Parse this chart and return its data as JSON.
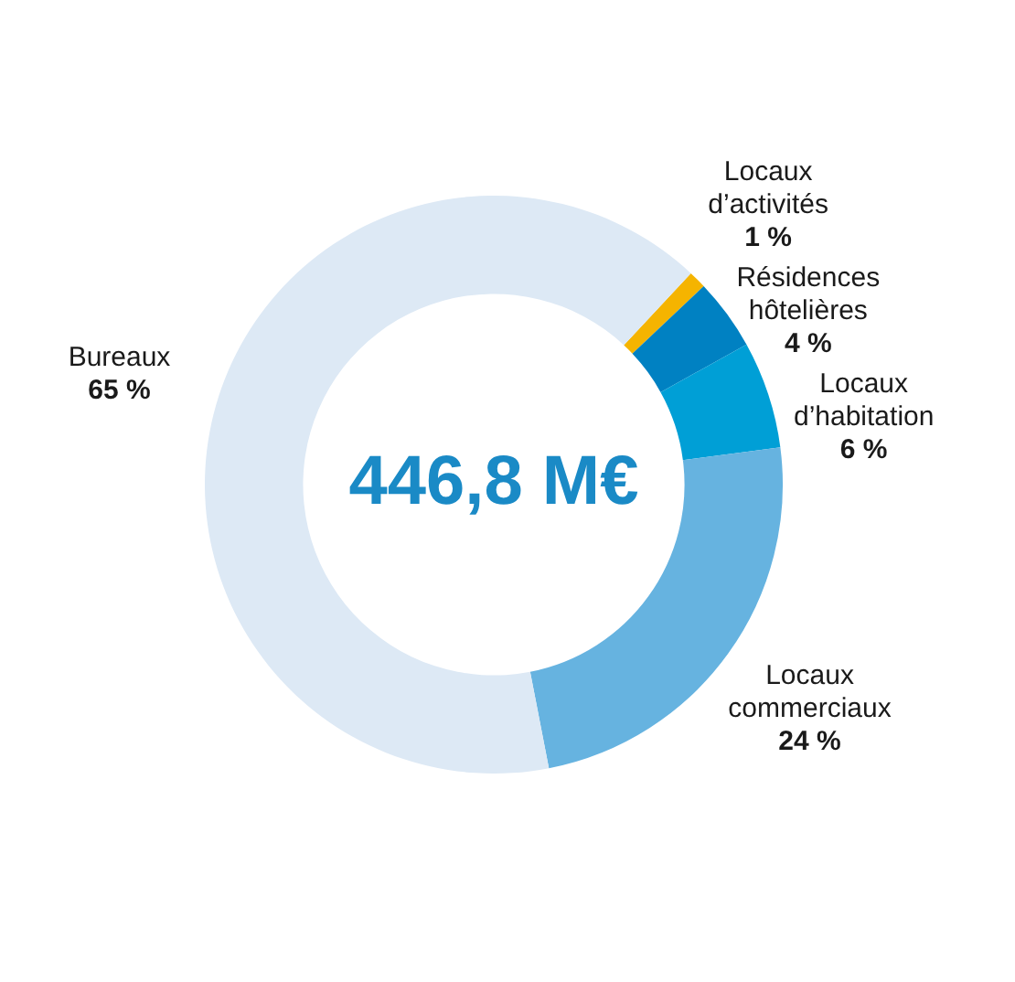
{
  "chart_data": {
    "type": "donut",
    "categories": [
      "Locaux d’activités",
      "Résidences hôtelières",
      "Locaux d’habitation",
      "Locaux commerciaux",
      "Bureaux"
    ],
    "values": [
      1,
      4,
      6,
      24,
      65
    ],
    "colors": [
      "#f5b400",
      "#0081c2",
      "#009fd6",
      "#66b3e0",
      "#dde9f5"
    ],
    "value_labels": [
      "1 %",
      "4 %",
      "6 %",
      "24 %",
      "65 %"
    ],
    "annotations": [
      "446,8 M€"
    ]
  }
}
